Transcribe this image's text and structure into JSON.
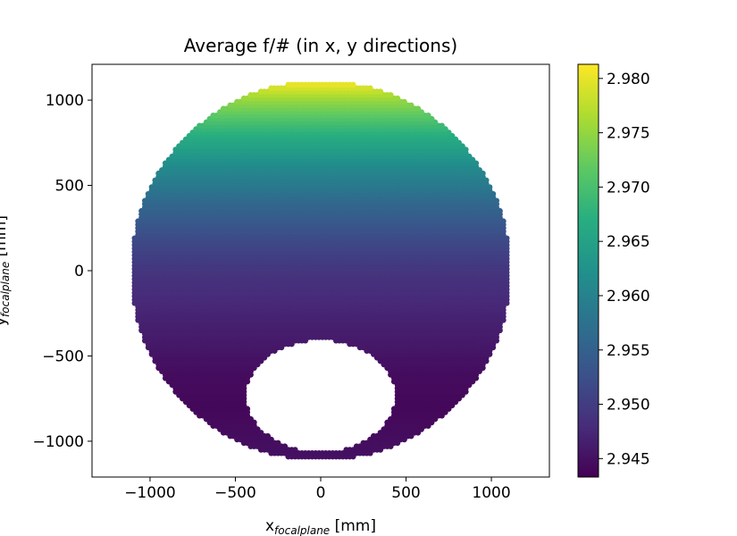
{
  "chart_data": {
    "type": "scatter",
    "title": "Average f/# (in x, y directions)",
    "xlabel": {
      "main": "x",
      "sub": "focalplane",
      "unit": " [mm]"
    },
    "ylabel": {
      "main": "y",
      "sub": "focalplane",
      "unit": " [mm]"
    },
    "xlim": [
      -1340,
      1340
    ],
    "ylim": [
      -1210,
      1210
    ],
    "x_ticks": [
      -1000,
      -500,
      0,
      500,
      1000
    ],
    "x_tick_labels": [
      "−1000",
      "−500",
      "0",
      "500",
      "1000"
    ],
    "y_ticks": [
      -1000,
      -500,
      0,
      500,
      1000
    ],
    "y_tick_labels": [
      "−1000",
      "−500",
      "0",
      "500",
      "1000"
    ],
    "region": {
      "outer_circle": {
        "cx": 0,
        "cy": 0,
        "r": 1110
      },
      "inner_hole": {
        "cx": 0,
        "cy": -735,
        "rx": 440,
        "ry": 330
      },
      "grid_step": 20
    },
    "color_value_model": {
      "description_values": "f/# depends mainly on y",
      "y_points": [
        -1100,
        -800,
        -600,
        -400,
        -200,
        0,
        200,
        400,
        600,
        800,
        1000,
        1110
      ],
      "f_values": [
        2.945,
        2.944,
        2.9445,
        2.946,
        2.9475,
        2.949,
        2.952,
        2.956,
        2.961,
        2.967,
        2.975,
        2.981
      ]
    },
    "colorbar": {
      "colormap": "viridis",
      "min": 2.9433,
      "max": 2.9813,
      "ticks": [
        2.945,
        2.95,
        2.955,
        2.96,
        2.965,
        2.97,
        2.975,
        2.98
      ],
      "tick_labels": [
        "2.945",
        "2.950",
        "2.955",
        "2.960",
        "2.965",
        "2.970",
        "2.975",
        "2.980"
      ]
    },
    "grid": false,
    "legend": "none"
  }
}
